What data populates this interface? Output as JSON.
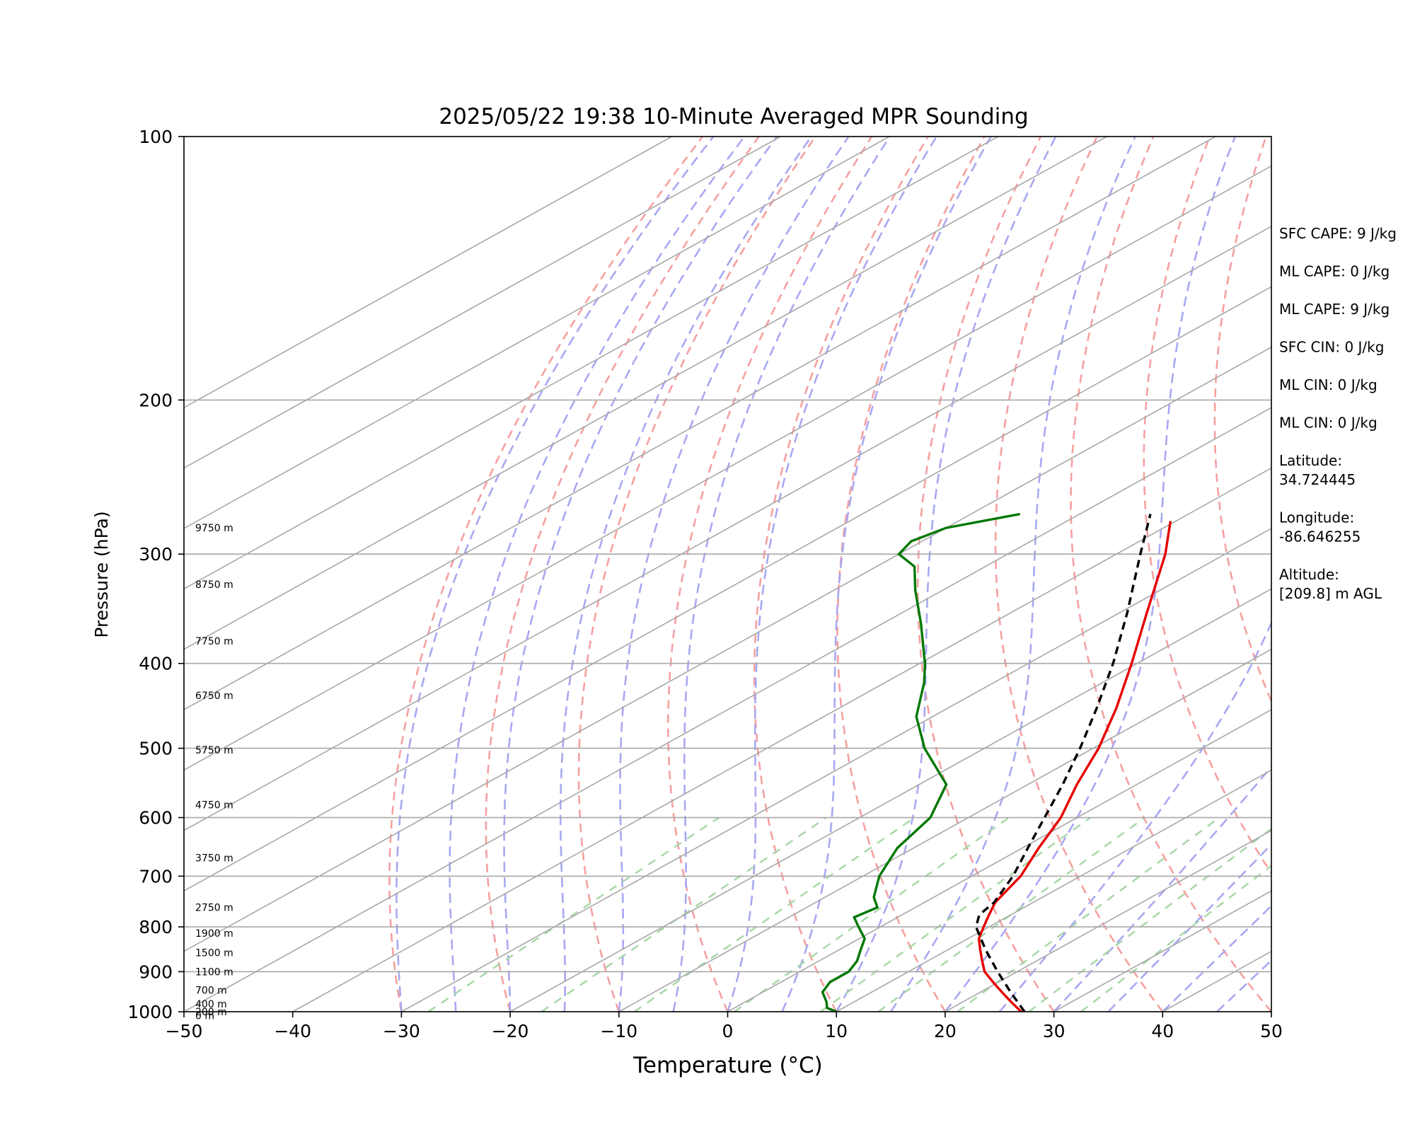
{
  "chart_data": {
    "type": "line",
    "chart_kind": "Skew-T log-P sounding",
    "title": "2025/05/22 19:38 10-Minute Averaged MPR Sounding",
    "xlabel": "Temperature (°C)",
    "ylabel": "Pressure (hPa)",
    "xlim": [
      -50,
      50
    ],
    "ylim": [
      1000,
      100
    ],
    "y_scale": "log",
    "skew": true,
    "grid": true,
    "x_ticks": [
      "−50",
      "−40",
      "−30",
      "−20",
      "−10",
      "0",
      "10",
      "20",
      "30",
      "40",
      "50"
    ],
    "x_tick_values": [
      -50,
      -40,
      -30,
      -20,
      -10,
      0,
      10,
      20,
      30,
      40,
      50
    ],
    "y_ticks": [
      "100",
      "200",
      "300",
      "400",
      "500",
      "600",
      "700",
      "800",
      "900",
      "1000"
    ],
    "y_tick_values": [
      100,
      200,
      300,
      400,
      500,
      600,
      700,
      800,
      900,
      1000
    ],
    "series": [
      {
        "role": "temperature",
        "color": "#e60000",
        "style": "solid",
        "points": [
          [
            1000,
            27
          ],
          [
            990,
            26
          ],
          [
            975,
            24.5
          ],
          [
            950,
            22
          ],
          [
            925,
            19.5
          ],
          [
            900,
            17
          ],
          [
            875,
            15
          ],
          [
            850,
            13
          ],
          [
            825,
            11
          ],
          [
            800,
            9.5
          ],
          [
            775,
            8
          ],
          [
            750,
            6.5
          ],
          [
            700,
            4.5
          ],
          [
            650,
            1.5
          ],
          [
            600,
            -1.5
          ],
          [
            550,
            -5.5
          ],
          [
            500,
            -9.5
          ],
          [
            450,
            -14.5
          ],
          [
            400,
            -20.5
          ],
          [
            350,
            -27.5
          ],
          [
            300,
            -35.5
          ],
          [
            275,
            -40.5
          ]
        ]
      },
      {
        "role": "dewpoint",
        "color": "#007800",
        "style": "solid",
        "points": [
          [
            1000,
            10
          ],
          [
            990,
            8.5
          ],
          [
            975,
            7.5
          ],
          [
            950,
            5.5
          ],
          [
            925,
            4.5
          ],
          [
            900,
            4.5
          ],
          [
            875,
            3.5
          ],
          [
            850,
            2
          ],
          [
            825,
            0.5
          ],
          [
            800,
            -2
          ],
          [
            780,
            -4
          ],
          [
            760,
            -3.5
          ],
          [
            740,
            -5.5
          ],
          [
            700,
            -8.5
          ],
          [
            650,
            -11.5
          ],
          [
            600,
            -13.5
          ],
          [
            550,
            -17.5
          ],
          [
            500,
            -25.5
          ],
          [
            460,
            -31.5
          ],
          [
            420,
            -36.5
          ],
          [
            400,
            -39.5
          ],
          [
            360,
            -46.5
          ],
          [
            330,
            -52.5
          ],
          [
            310,
            -56.5
          ],
          [
            300,
            -60
          ],
          [
            290,
            -61
          ],
          [
            280,
            -60
          ],
          [
            270,
            -55.5
          ]
        ]
      },
      {
        "role": "parcel profile",
        "color": "#000000",
        "style": "dashed",
        "points": [
          [
            1000,
            27.3
          ],
          [
            950,
            22.8
          ],
          [
            900,
            18.2
          ],
          [
            850,
            13.5
          ],
          [
            800,
            8.8
          ],
          [
            775,
            7.1
          ],
          [
            750,
            6.4
          ],
          [
            700,
            3.8
          ],
          [
            650,
            0.5
          ],
          [
            600,
            -3
          ],
          [
            550,
            -6.8
          ],
          [
            500,
            -11.2
          ],
          [
            450,
            -16.3
          ],
          [
            400,
            -22.2
          ],
          [
            350,
            -29.3
          ],
          [
            300,
            -37.8
          ],
          [
            270,
            -43.5
          ]
        ]
      }
    ],
    "height_labels": [
      "9750 m",
      "8750 m",
      "7750 m",
      "6750 m",
      "5750 m",
      "4750 m",
      "3750 m",
      "2750 m",
      "1900 m",
      "1500 m",
      "1100 m",
      "700 m",
      "400 m",
      "200 m",
      "0 m"
    ],
    "height_pressures": [
      280,
      325,
      377,
      435,
      502,
      580,
      667,
      760,
      813,
      856,
      900,
      945,
      980,
      1000,
      1010
    ],
    "statistics": [
      "SFC CAPE: 9 J/kg",
      "ML CAPE: 0 J/kg",
      "ML CAPE: 9 J/kg",
      "SFC CIN: 0 J/kg",
      "ML CIN: 0 J/kg",
      "ML CIN: 0 J/kg",
      "Latitude:",
      "34.724445",
      "Longitude:",
      "-86.646255",
      "Altitude:",
      "[209.8] m AGL"
    ]
  }
}
